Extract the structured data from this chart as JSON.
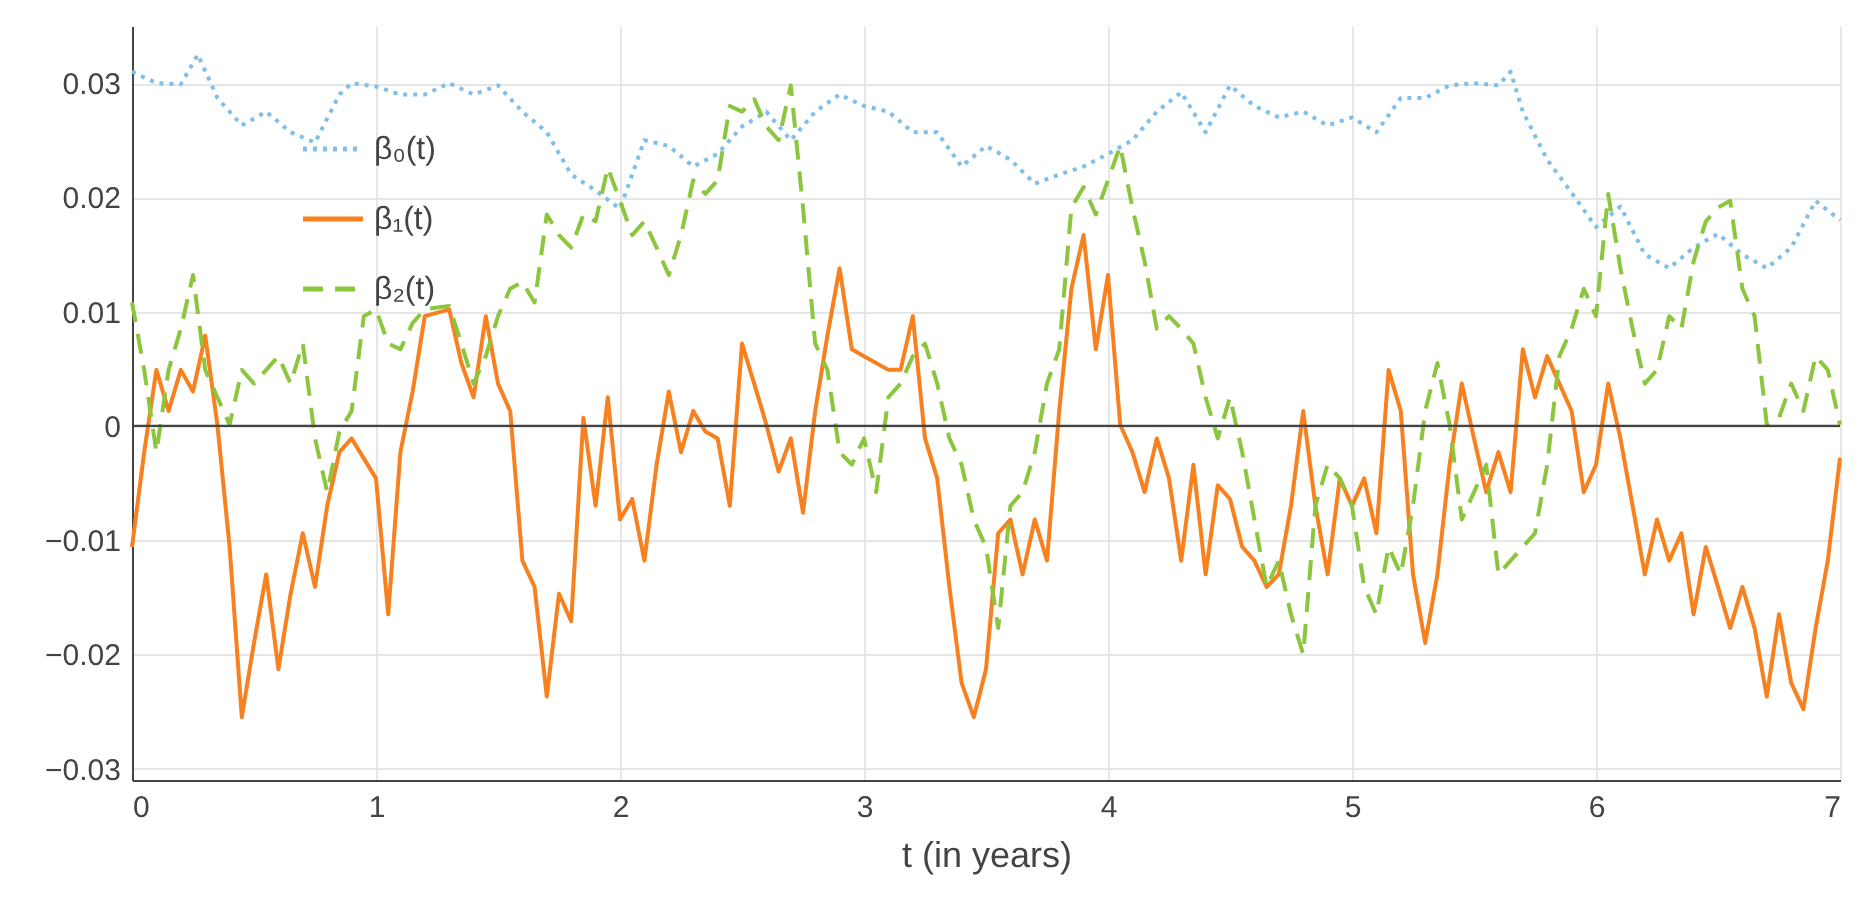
{
  "chart_data": {
    "type": "line",
    "xlabel": "t (in years)",
    "xlim": [
      0,
      7
    ],
    "xticks": [
      0,
      1,
      2,
      3,
      4,
      5,
      6,
      7
    ],
    "ylim": [
      -0.031,
      0.035
    ],
    "yticks": [
      -0.03,
      -0.02,
      -0.01,
      0,
      0.01,
      0.02,
      0.03
    ],
    "grid": true,
    "legend": "top left",
    "ref_lines": [
      {
        "axis": "y",
        "value": 0,
        "color": "#444444"
      }
    ],
    "series": [
      {
        "name": "β₀(t)",
        "color": "#7fbfea",
        "line_style": "dotted",
        "x": [
          0,
          0.1,
          0.2,
          0.27,
          0.35,
          0.45,
          0.55,
          0.65,
          0.75,
          0.85,
          0.9,
          1.0,
          1.1,
          1.2,
          1.3,
          1.4,
          1.5,
          1.6,
          1.7,
          1.8,
          1.9,
          2.0,
          2.1,
          2.2,
          2.3,
          2.4,
          2.5,
          2.6,
          2.7,
          2.8,
          2.9,
          3.0,
          3.1,
          3.2,
          3.3,
          3.4,
          3.5,
          3.6,
          3.7,
          3.8,
          3.9,
          4.0,
          4.1,
          4.2,
          4.3,
          4.4,
          4.5,
          4.6,
          4.7,
          4.8,
          4.9,
          5.0,
          5.1,
          5.2,
          5.3,
          5.4,
          5.5,
          5.6,
          5.65,
          5.7,
          5.8,
          5.9,
          6.0,
          6.1,
          6.2,
          6.3,
          6.4,
          6.5,
          6.6,
          6.7,
          6.8,
          6.9,
          7.0
        ],
        "values": [
          0.031,
          0.03,
          0.0299,
          0.0325,
          0.0287,
          0.0263,
          0.0275,
          0.0257,
          0.0248,
          0.029,
          0.03,
          0.0297,
          0.029,
          0.029,
          0.03,
          0.029,
          0.0298,
          0.0275,
          0.0257,
          0.022,
          0.0206,
          0.019,
          0.025,
          0.0245,
          0.0227,
          0.0238,
          0.0262,
          0.0275,
          0.025,
          0.0275,
          0.029,
          0.028,
          0.0275,
          0.0257,
          0.0257,
          0.0227,
          0.0245,
          0.0233,
          0.0212,
          0.022,
          0.0227,
          0.0238,
          0.025,
          0.0275,
          0.0292,
          0.0257,
          0.0298,
          0.028,
          0.027,
          0.0275,
          0.0263,
          0.027,
          0.0257,
          0.0287,
          0.0287,
          0.0298,
          0.03,
          0.0298,
          0.031,
          0.0275,
          0.0233,
          0.0204,
          0.0174,
          0.0192,
          0.015,
          0.0138,
          0.0156,
          0.0168,
          0.015,
          0.0138,
          0.0156,
          0.0197,
          0.018
        ]
      },
      {
        "name": "β₁(t)",
        "color": "#f7801f",
        "line_style": "solid",
        "x": [
          0,
          0.05,
          0.1,
          0.15,
          0.2,
          0.25,
          0.3,
          0.35,
          0.4,
          0.45,
          0.5,
          0.55,
          0.6,
          0.65,
          0.7,
          0.75,
          0.8,
          0.85,
          0.9,
          1.0,
          1.05,
          1.1,
          1.15,
          1.2,
          1.3,
          1.35,
          1.4,
          1.45,
          1.5,
          1.55,
          1.6,
          1.65,
          1.7,
          1.75,
          1.8,
          1.85,
          1.9,
          1.95,
          2.0,
          2.05,
          2.1,
          2.15,
          2.2,
          2.25,
          2.3,
          2.35,
          2.4,
          2.45,
          2.5,
          2.55,
          2.6,
          2.65,
          2.7,
          2.75,
          2.8,
          2.85,
          2.9,
          2.95,
          3.0,
          3.1,
          3.15,
          3.2,
          3.25,
          3.3,
          3.35,
          3.4,
          3.45,
          3.5,
          3.55,
          3.6,
          3.65,
          3.7,
          3.75,
          3.8,
          3.85,
          3.9,
          3.95,
          4.0,
          4.05,
          4.1,
          4.15,
          4.2,
          4.25,
          4.3,
          4.35,
          4.4,
          4.45,
          4.5,
          4.55,
          4.6,
          4.65,
          4.7,
          4.75,
          4.8,
          4.85,
          4.9,
          4.95,
          5.0,
          5.05,
          5.1,
          5.15,
          5.2,
          5.25,
          5.3,
          5.35,
          5.4,
          5.45,
          5.5,
          5.55,
          5.6,
          5.65,
          5.7,
          5.75,
          5.8,
          5.85,
          5.9,
          5.95,
          6.0,
          6.05,
          6.1,
          6.15,
          6.2,
          6.25,
          6.3,
          6.35,
          6.4,
          6.45,
          6.5,
          6.55,
          6.6,
          6.65,
          6.7,
          6.75,
          6.8,
          6.85,
          6.9,
          6.95,
          7.0
        ],
        "values": [
          -0.0106,
          -0.0023,
          0.0049,
          0.0013,
          0.0049,
          0.003,
          0.0079,
          0.0001,
          -0.0106,
          -0.0255,
          -0.019,
          -0.013,
          -0.0213,
          -0.0147,
          -0.0094,
          -0.0141,
          -0.007,
          -0.0023,
          -0.0011,
          -0.0046,
          -0.0165,
          -0.0023,
          0.003,
          0.0096,
          0.0102,
          0.0055,
          0.0025,
          0.0096,
          0.0037,
          0.0013,
          -0.0118,
          -0.0141,
          -0.0237,
          -0.0147,
          -0.0171,
          0.0007,
          -0.007,
          0.0025,
          -0.0082,
          -0.0064,
          -0.0118,
          -0.0034,
          0.003,
          -0.0023,
          0.0013,
          -0.0005,
          -0.0011,
          -0.007,
          0.0072,
          0.0037,
          0.0001,
          -0.004,
          -0.0011,
          -0.0076,
          0.0013,
          0.0079,
          0.0138,
          0.0067,
          0.0061,
          0.0049,
          0.0049,
          0.0096,
          -0.0011,
          -0.0046,
          -0.0141,
          -0.0225,
          -0.0255,
          -0.0213,
          -0.0094,
          -0.0082,
          -0.013,
          -0.0082,
          -0.0118,
          0.0013,
          0.012,
          0.0167,
          0.0067,
          0.0132,
          0.0001,
          -0.0023,
          -0.0058,
          -0.0011,
          -0.0046,
          -0.0118,
          -0.0034,
          -0.013,
          -0.0052,
          -0.0064,
          -0.0106,
          -0.0118,
          -0.0141,
          -0.013,
          -0.007,
          0.0013,
          -0.007,
          -0.013,
          -0.0046,
          -0.007,
          -0.0046,
          -0.0094,
          0.0049,
          0.0013,
          -0.013,
          -0.019,
          -0.013,
          -0.0034,
          0.0037,
          -0.0011,
          -0.0058,
          -0.0023,
          -0.0058,
          0.0067,
          0.0025,
          0.0061,
          0.0037,
          0.0013,
          -0.0058,
          -0.0034,
          0.0037,
          -0.0011,
          -0.007,
          -0.013,
          -0.0082,
          -0.0118,
          -0.0094,
          -0.0165,
          -0.0106,
          -0.0141,
          -0.0177,
          -0.0141,
          -0.0177,
          -0.0237,
          -0.0165,
          -0.0225,
          -0.0248,
          -0.0177,
          -0.0118,
          -0.0028
        ]
      },
      {
        "name": "β₂(t)",
        "color": "#8cc63f",
        "line_style": "dashed",
        "x": [
          0,
          0.05,
          0.1,
          0.15,
          0.2,
          0.25,
          0.3,
          0.35,
          0.4,
          0.45,
          0.5,
          0.55,
          0.6,
          0.65,
          0.7,
          0.75,
          0.8,
          0.85,
          0.9,
          0.95,
          1.0,
          1.05,
          1.1,
          1.15,
          1.2,
          1.3,
          1.35,
          1.4,
          1.45,
          1.5,
          1.55,
          1.6,
          1.65,
          1.7,
          1.75,
          1.8,
          1.85,
          1.9,
          1.95,
          2.0,
          2.05,
          2.1,
          2.15,
          2.2,
          2.25,
          2.3,
          2.35,
          2.4,
          2.45,
          2.5,
          2.55,
          2.6,
          2.65,
          2.7,
          2.75,
          2.8,
          2.85,
          2.9,
          2.95,
          3.0,
          3.05,
          3.1,
          3.15,
          3.2,
          3.25,
          3.3,
          3.35,
          3.4,
          3.45,
          3.5,
          3.55,
          3.6,
          3.65,
          3.7,
          3.75,
          3.8,
          3.85,
          3.9,
          3.95,
          4.0,
          4.05,
          4.1,
          4.15,
          4.2,
          4.25,
          4.3,
          4.35,
          4.4,
          4.45,
          4.5,
          4.55,
          4.6,
          4.65,
          4.7,
          4.75,
          4.8,
          4.85,
          4.9,
          4.95,
          5.0,
          5.05,
          5.1,
          5.15,
          5.2,
          5.25,
          5.3,
          5.35,
          5.4,
          5.45,
          5.5,
          5.55,
          5.6,
          5.65,
          5.7,
          5.75,
          5.8,
          5.85,
          5.9,
          5.95,
          6.0,
          6.05,
          6.1,
          6.15,
          6.2,
          6.25,
          6.3,
          6.35,
          6.4,
          6.45,
          6.5,
          6.55,
          6.6,
          6.65,
          6.7,
          6.75,
          6.8,
          6.85,
          6.9,
          6.95,
          7.0
        ],
        "values": [
          0.0108,
          0.0049,
          -0.0023,
          0.0049,
          0.0085,
          0.0132,
          0.0049,
          0.0025,
          0.0001,
          0.0049,
          0.0037,
          0.0049,
          0.0061,
          0.0037,
          0.0072,
          -0.0011,
          -0.0058,
          -0.0005,
          0.0013,
          0.0096,
          0.0102,
          0.0072,
          0.0067,
          0.009,
          0.0102,
          0.0105,
          0.0072,
          0.0037,
          0.0061,
          0.0096,
          0.012,
          0.0126,
          0.0108,
          0.0185,
          0.0167,
          0.0156,
          0.0185,
          0.0179,
          0.0226,
          0.0197,
          0.0167,
          0.0179,
          0.0156,
          0.0132,
          0.0167,
          0.0215,
          0.0203,
          0.0215,
          0.028,
          0.0275,
          0.0286,
          0.0262,
          0.025,
          0.0298,
          0.0191,
          0.0072,
          0.0049,
          -0.0023,
          -0.0034,
          -0.0011,
          -0.0058,
          0.0025,
          0.0037,
          0.0061,
          0.0072,
          0.0037,
          -0.0011,
          -0.0034,
          -0.0082,
          -0.0106,
          -0.0177,
          -0.007,
          -0.0058,
          -0.0023,
          0.0037,
          0.0067,
          0.0191,
          0.0209,
          0.0185,
          0.0215,
          0.0245,
          0.0191,
          0.0144,
          0.0085,
          0.0096,
          0.0085,
          0.0072,
          0.0025,
          -0.0011,
          0.0025,
          -0.0023,
          -0.0082,
          -0.0141,
          -0.0118,
          -0.0165,
          -0.02,
          -0.007,
          -0.0034,
          -0.0046,
          -0.007,
          -0.0141,
          -0.0165,
          -0.0106,
          -0.013,
          -0.007,
          0.0013,
          0.0055,
          0.0001,
          -0.0082,
          -0.0058,
          -0.0034,
          -0.013,
          -0.0118,
          -0.0106,
          -0.0094,
          -0.0034,
          0.0061,
          0.0085,
          0.012,
          0.0096,
          0.0203,
          0.0138,
          0.0085,
          0.0037,
          0.0049,
          0.0096,
          0.0085,
          0.0144,
          0.0179,
          0.0191,
          0.0197,
          0.012,
          0.0096,
          0.0001,
          0.0007,
          0.0037,
          0.0013,
          0.0061,
          0.0049,
          0.0001
        ]
      }
    ]
  }
}
